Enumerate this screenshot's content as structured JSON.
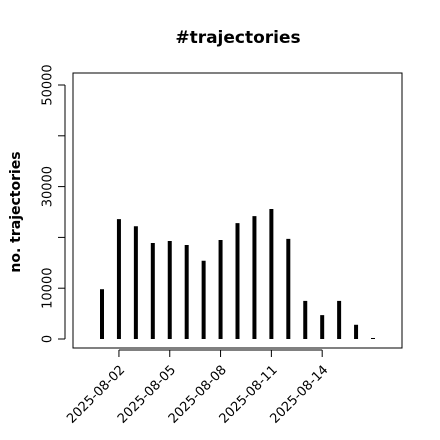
{
  "chart_data": {
    "type": "histogram-lines",
    "title": "#trajectories",
    "ylabel": "no. trajectories",
    "x": [
      "2025-08-01",
      "2025-08-02",
      "2025-08-03",
      "2025-08-04",
      "2025-08-05",
      "2025-08-06",
      "2025-08-07",
      "2025-08-08",
      "2025-08-09",
      "2025-08-10",
      "2025-08-11",
      "2025-08-12",
      "2025-08-13",
      "2025-08-14",
      "2025-08-15",
      "2025-08-16",
      "2025-08-17"
    ],
    "values": [
      9800,
      23600,
      22200,
      18900,
      19300,
      18500,
      15400,
      19500,
      22800,
      24200,
      25600,
      19700,
      7500,
      4700,
      7500,
      2800,
      200
    ],
    "color": "#000000",
    "xticks": [
      "2025-08-02",
      "2025-08-05",
      "2025-08-08",
      "2025-08-11",
      "2025-08-14"
    ],
    "ylim": [
      0,
      50000
    ],
    "yticks": [
      0,
      10000,
      {
        "value": 20000,
        "label": null
      },
      30000,
      {
        "value": 40000,
        "label": null
      },
      50000
    ]
  }
}
